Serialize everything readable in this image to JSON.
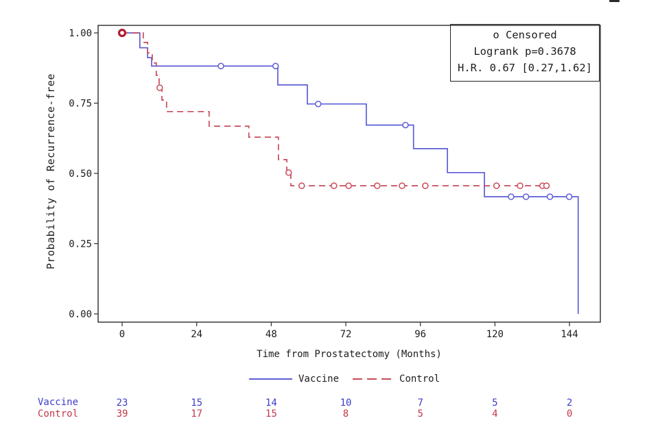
{
  "chart_data": {
    "type": "line",
    "subtype": "kaplan_meier_step",
    "title": "",
    "xlabel": "Time from Prostatectomy (Months)",
    "ylabel": "Probability of Recurrence-free",
    "x_ticks": {
      "values": [
        0,
        24,
        48,
        72,
        96,
        120,
        144
      ],
      "labels": [
        "0",
        "24",
        "48",
        "72",
        "96",
        "120",
        "144"
      ]
    },
    "y_ticks": {
      "values": [
        1.0,
        0.75,
        0.5,
        0.25,
        0.0
      ],
      "labels": [
        "1.00",
        "0.75",
        "0.50",
        "0.25",
        "0.00"
      ]
    },
    "xlim": [
      -7.7,
      153.9
    ],
    "ylim": [
      0.0,
      1.0
    ],
    "grid": false,
    "annotations": [
      "o Censored",
      "Logrank p=0.3678",
      "H.R. 0.67 [0.27,1.62]"
    ],
    "series": [
      {
        "name": "Vaccine",
        "color": "#5c5cd6",
        "style": "solid",
        "steps": [
          [
            0,
            1.0
          ],
          [
            5.7,
            1.0
          ],
          [
            5.7,
            0.947
          ],
          [
            8.2,
            0.947
          ],
          [
            8.2,
            0.912
          ],
          [
            9.5,
            0.912
          ],
          [
            9.5,
            0.882
          ],
          [
            50.1,
            0.882
          ],
          [
            50.1,
            0.815
          ],
          [
            59.6,
            0.815
          ],
          [
            59.6,
            0.747
          ],
          [
            78.6,
            0.747
          ],
          [
            78.6,
            0.672
          ],
          [
            93.8,
            0.672
          ],
          [
            93.8,
            0.588
          ],
          [
            104.7,
            0.588
          ],
          [
            104.7,
            0.503
          ],
          [
            116.6,
            0.503
          ],
          [
            116.6,
            0.417
          ],
          [
            146.8,
            0.417
          ],
          [
            146.8,
            0.0
          ]
        ],
        "censored": [
          [
            31.8,
            0.882
          ],
          [
            49.4,
            0.882
          ],
          [
            63.1,
            0.747
          ],
          [
            91.2,
            0.672
          ],
          [
            125.2,
            0.417
          ],
          [
            130.0,
            0.417
          ],
          [
            137.7,
            0.417
          ],
          [
            143.9,
            0.417
          ]
        ]
      },
      {
        "name": "Control",
        "color": "#c84a58",
        "style": "dashed",
        "steps": [
          [
            0,
            1.0
          ],
          [
            6.8,
            1.0
          ],
          [
            6.8,
            0.966
          ],
          [
            8.2,
            0.966
          ],
          [
            8.2,
            0.929
          ],
          [
            9.7,
            0.929
          ],
          [
            9.7,
            0.893
          ],
          [
            11.0,
            0.893
          ],
          [
            11.0,
            0.849
          ],
          [
            11.9,
            0.849
          ],
          [
            11.9,
            0.805
          ],
          [
            12.8,
            0.805
          ],
          [
            12.8,
            0.761
          ],
          [
            14.3,
            0.761
          ],
          [
            14.3,
            0.72
          ],
          [
            28.0,
            0.72
          ],
          [
            28.0,
            0.668
          ],
          [
            40.8,
            0.668
          ],
          [
            40.8,
            0.629
          ],
          [
            50.3,
            0.629
          ],
          [
            50.3,
            0.549
          ],
          [
            53.0,
            0.549
          ],
          [
            53.0,
            0.503
          ],
          [
            54.3,
            0.503
          ],
          [
            54.3,
            0.456
          ],
          [
            137.0,
            0.456
          ]
        ],
        "censored": [
          [
            12.1,
            0.805
          ],
          [
            53.6,
            0.503
          ],
          [
            57.8,
            0.456
          ],
          [
            68.2,
            0.456
          ],
          [
            72.9,
            0.456
          ],
          [
            82.1,
            0.456
          ],
          [
            90.1,
            0.456
          ],
          [
            97.6,
            0.456
          ],
          [
            120.5,
            0.456
          ],
          [
            128.1,
            0.456
          ],
          [
            135.3,
            0.456
          ],
          [
            136.6,
            0.456
          ]
        ],
        "start_marker": {
          "t": 0,
          "p": 1.0,
          "bold": true,
          "color": "#b01e32"
        }
      }
    ],
    "legend": {
      "position": "bottom",
      "entries": [
        "Vaccine",
        "Control"
      ]
    }
  },
  "risk_table": {
    "times": [
      0,
      24,
      48,
      72,
      96,
      120,
      144
    ],
    "rows": [
      {
        "label": "Vaccine",
        "color": "#3c3ccc",
        "counts": [
          "23",
          "15",
          "14",
          "10",
          "7",
          "5",
          "2"
        ]
      },
      {
        "label": "Control",
        "color": "#c23848",
        "counts": [
          "39",
          "17",
          "15",
          "8",
          "5",
          "4",
          "0"
        ]
      }
    ]
  }
}
